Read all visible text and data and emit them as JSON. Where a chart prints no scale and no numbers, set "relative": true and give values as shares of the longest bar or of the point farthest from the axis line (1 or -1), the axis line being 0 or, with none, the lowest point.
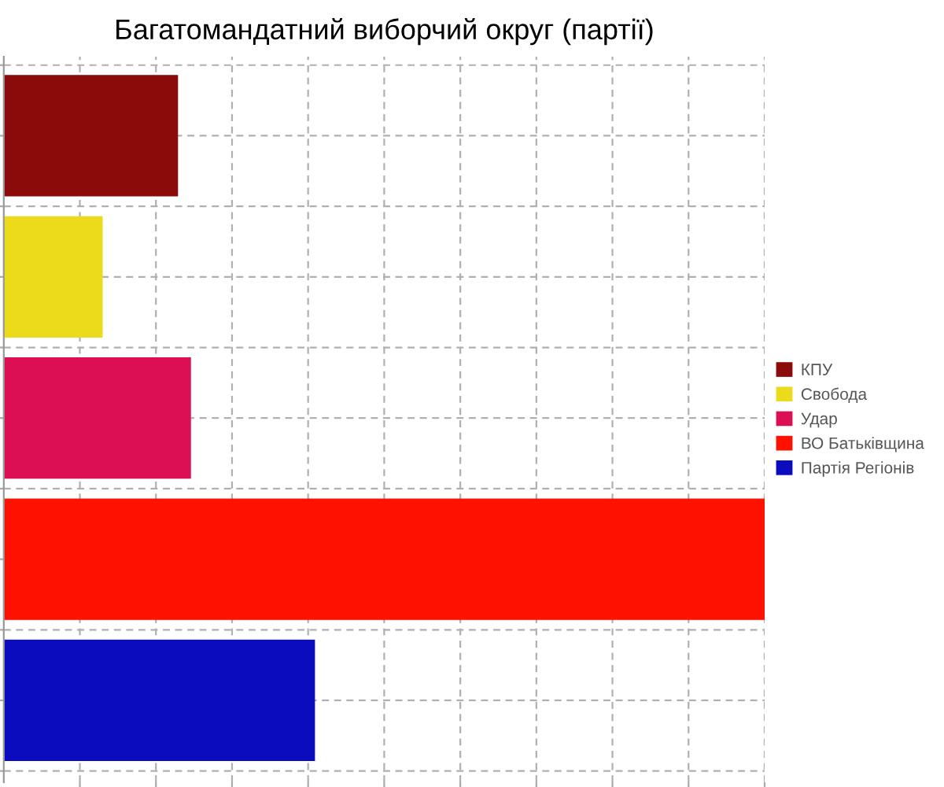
{
  "chart_data": {
    "type": "bar",
    "orientation": "horizontal",
    "relative": true,
    "title": "Багатомандатний виборчий округ (партії)",
    "categories": [
      null,
      null,
      null,
      null,
      null
    ],
    "series": [
      {
        "name": "КПУ",
        "color": "#8b0a0a",
        "values": [
          0.229,
          null,
          null,
          null,
          null
        ]
      },
      {
        "name": "Свобода",
        "color": "#ecdb1a",
        "values": [
          null,
          0.13,
          null,
          null,
          null
        ]
      },
      {
        "name": "Удар",
        "color": "#dc0f55",
        "values": [
          null,
          null,
          0.246,
          null,
          null
        ]
      },
      {
        "name": "ВО Батьківщина",
        "color": "#ff1100",
        "values": [
          null,
          null,
          null,
          1,
          null
        ]
      },
      {
        "name": "Партія Регіонів",
        "color": "#0c0cbf",
        "values": [
          null,
          null,
          null,
          null,
          0.409
        ]
      }
    ],
    "stacked": true,
    "grid": true,
    "legend": "right"
  }
}
